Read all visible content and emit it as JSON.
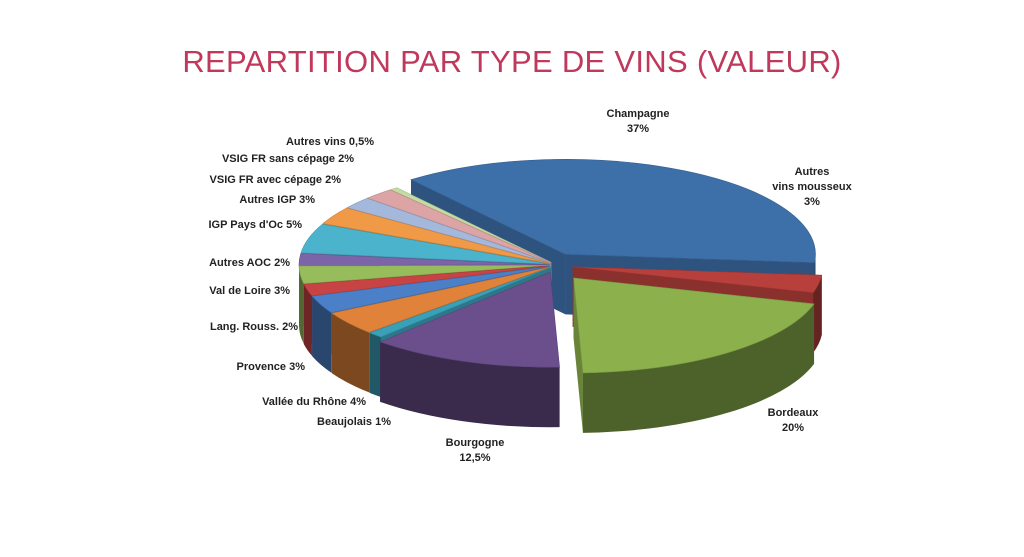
{
  "title": "REPARTITION PAR TYPE DE VINS (VALEUR)",
  "chart_data": {
    "type": "pie",
    "title": "REPARTITION PAR TYPE DE VINS (VALEUR)",
    "style": "3d-exploded",
    "categories": [
      "Champagne",
      "Autres vins mousseux",
      "Bordeaux",
      "Bourgogne",
      "Beaujolais",
      "Vallée du Rhône",
      "Provence",
      "Lang. Rouss.",
      "Val de Loire",
      "Autres AOC",
      "IGP Pays d'Oc",
      "Autres IGP",
      "VSIG FR avec cépage",
      "VSIG FR sans cépage",
      "Autres vins"
    ],
    "values": [
      37,
      3,
      20,
      12.5,
      1,
      4,
      3,
      2,
      3,
      2,
      5,
      3,
      2,
      2,
      0.5
    ],
    "colors": [
      "#3d6fa8",
      "#b8403c",
      "#8cb04c",
      "#6a4f8c",
      "#3aa0b8",
      "#e0823a",
      "#4b7fc8",
      "#c84444",
      "#96bc5c",
      "#7c64a8",
      "#4bb4cc",
      "#f09a48",
      "#a4b8dc",
      "#dca4a4",
      "#c4dca4"
    ],
    "labels": [
      {
        "lines": [
          "Champagne",
          "37%"
        ]
      },
      {
        "lines": [
          "Autres",
          "vins mousseux",
          "3%"
        ]
      },
      {
        "lines": [
          "Bordeaux",
          "20%"
        ]
      },
      {
        "lines": [
          "Bourgogne",
          "12,5%"
        ]
      },
      {
        "lines": [
          "Beaujolais 1%"
        ]
      },
      {
        "lines": [
          "Vallée du Rhône 4%"
        ]
      },
      {
        "lines": [
          "Provence 3%"
        ]
      },
      {
        "lines": [
          "Lang. Rouss. 2%"
        ]
      },
      {
        "lines": [
          "Val de Loire 3%"
        ]
      },
      {
        "lines": [
          "Autres AOC 2%"
        ]
      },
      {
        "lines": [
          "IGP Pays d'Oc 5%"
        ]
      },
      {
        "lines": [
          "Autres IGP 3%"
        ]
      },
      {
        "lines": [
          "VSIG FR avec cépage 2%"
        ]
      },
      {
        "lines": [
          "VSIG FR sans cépage 2%"
        ]
      },
      {
        "lines": [
          "Autres vins 0,5%"
        ]
      }
    ]
  }
}
